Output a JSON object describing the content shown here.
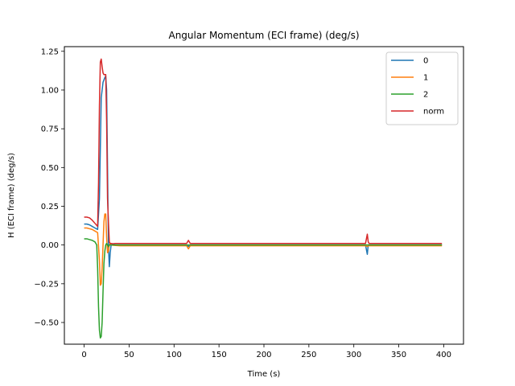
{
  "chart_data": {
    "type": "line",
    "title": "Angular Momentum (ECI frame) (deg/s)",
    "xlabel": "Time (s)",
    "ylabel": "H (ECI frame) (deg/s)",
    "xlim": [
      -22,
      422
    ],
    "ylim": [
      -0.64,
      1.28
    ],
    "xticks": [
      0,
      50,
      100,
      150,
      200,
      250,
      300,
      350,
      400
    ],
    "yticks": [
      -0.5,
      -0.25,
      0.0,
      0.25,
      0.5,
      0.75,
      1.0,
      1.25
    ],
    "ytick_labels": [
      "−0.50",
      "−0.25",
      "0.00",
      "0.25",
      "0.50",
      "0.75",
      "1.00",
      "1.25"
    ],
    "legend_position": "top-right",
    "grid": false,
    "series": [
      {
        "name": "0",
        "color": "#1f77b4",
        "x": [
          0,
          3,
          6,
          9,
          12,
          15,
          17,
          19,
          21,
          23,
          24,
          25,
          26,
          27,
          28,
          29,
          30,
          32,
          35,
          40,
          50,
          60,
          80,
          100,
          114,
          116,
          118,
          120,
          140,
          160,
          180,
          200,
          220,
          240,
          260,
          280,
          300,
          313,
          315,
          316,
          317,
          318,
          320,
          340,
          360,
          380,
          398
        ],
        "y": [
          0.135,
          0.135,
          0.13,
          0.12,
          0.11,
          0.1,
          0.3,
          0.95,
          1.05,
          1.08,
          1.09,
          1.0,
          0.5,
          0.0,
          -0.14,
          -0.05,
          0.0,
          0.003,
          0.0,
          0.0,
          0.0,
          0.0,
          0.0,
          0.0,
          0.0,
          -0.01,
          0.0,
          0.0,
          0.0,
          0.0,
          0.0,
          0.0,
          0.0,
          0.0,
          0.0,
          0.0,
          0.0,
          0.0,
          -0.06,
          0.0,
          0.0,
          0.0,
          0.0,
          0.0,
          0.0,
          0.0,
          0.0
        ]
      },
      {
        "name": "1",
        "color": "#ff7f0e",
        "x": [
          0,
          3,
          6,
          9,
          12,
          15,
          17,
          18,
          19,
          20,
          21,
          22,
          23,
          24,
          25,
          26,
          27,
          28,
          29,
          30,
          32,
          35,
          40,
          50,
          60,
          80,
          100,
          114,
          116,
          118,
          120,
          140,
          160,
          180,
          200,
          220,
          240,
          260,
          280,
          300,
          313,
          315,
          316,
          317,
          318,
          320,
          340,
          360,
          380,
          398
        ],
        "y": [
          0.11,
          0.11,
          0.105,
          0.1,
          0.09,
          0.08,
          -0.1,
          -0.26,
          -0.25,
          -0.15,
          0.0,
          0.15,
          0.2,
          0.2,
          0.05,
          -0.05,
          -0.04,
          0.0,
          0.01,
          0.0,
          -0.002,
          -0.003,
          -0.005,
          -0.005,
          -0.005,
          -0.005,
          -0.005,
          -0.005,
          -0.025,
          -0.005,
          -0.005,
          -0.005,
          -0.005,
          -0.005,
          -0.005,
          -0.005,
          -0.005,
          -0.005,
          -0.005,
          -0.005,
          -0.005,
          -0.01,
          -0.005,
          -0.005,
          -0.005,
          -0.005,
          -0.005,
          -0.005,
          -0.005,
          -0.005
        ]
      },
      {
        "name": "2",
        "color": "#2ca02c",
        "x": [
          0,
          3,
          6,
          9,
          12,
          14,
          15,
          16,
          17,
          18,
          19,
          20,
          21,
          22,
          23,
          24,
          25,
          26,
          27,
          28,
          30,
          32,
          35,
          40,
          50,
          60,
          80,
          100,
          120,
          140,
          160,
          180,
          200,
          220,
          240,
          260,
          280,
          300,
          315,
          320,
          340,
          360,
          380,
          398
        ],
        "y": [
          0.04,
          0.04,
          0.035,
          0.03,
          0.02,
          0.0,
          -0.15,
          -0.4,
          -0.55,
          -0.6,
          -0.59,
          -0.5,
          -0.3,
          -0.12,
          -0.04,
          0.0,
          0.01,
          0.0,
          -0.01,
          0.0,
          0.0,
          0.0,
          0.0,
          0.0,
          0.0,
          0.0,
          0.0,
          0.0,
          0.0,
          0.0,
          0.0,
          0.0,
          0.0,
          0.0,
          0.0,
          0.0,
          0.0,
          0.0,
          0.0,
          0.0,
          0.0,
          0.0,
          0.0,
          0.0
        ]
      },
      {
        "name": "norm",
        "color": "#d62728",
        "x": [
          0,
          3,
          6,
          9,
          12,
          15,
          16,
          17,
          18,
          19,
          20,
          21,
          22,
          23,
          24,
          25,
          26,
          27,
          28,
          29,
          30,
          32,
          35,
          40,
          50,
          60,
          80,
          100,
          114,
          116,
          118,
          120,
          140,
          160,
          180,
          200,
          220,
          240,
          260,
          280,
          300,
          313,
          315,
          316,
          317,
          318,
          320,
          340,
          360,
          380,
          398
        ],
        "y": [
          0.18,
          0.18,
          0.175,
          0.16,
          0.14,
          0.12,
          0.4,
          0.9,
          1.18,
          1.2,
          1.15,
          1.11,
          1.1,
          1.1,
          1.1,
          0.8,
          0.3,
          0.15,
          0.02,
          0.01,
          0.01,
          0.008,
          0.01,
          0.01,
          0.01,
          0.01,
          0.01,
          0.01,
          0.01,
          0.03,
          0.01,
          0.01,
          0.01,
          0.01,
          0.01,
          0.01,
          0.01,
          0.01,
          0.01,
          0.01,
          0.01,
          0.01,
          0.07,
          0.02,
          0.01,
          0.01,
          0.01,
          0.01,
          0.01,
          0.01,
          0.01
        ]
      }
    ]
  }
}
